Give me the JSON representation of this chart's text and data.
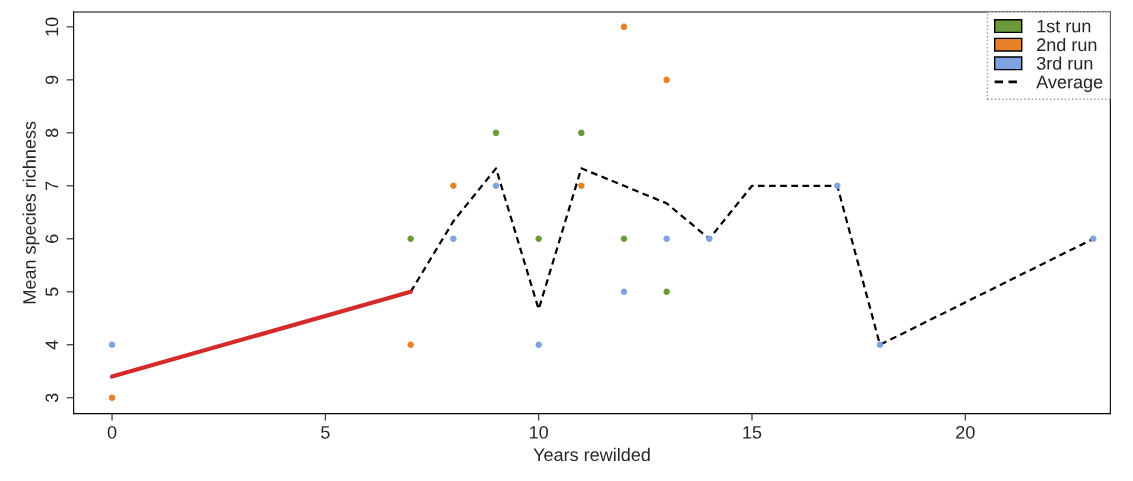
{
  "chart_data": {
    "type": "scatter",
    "xlabel": "Years rewilded",
    "ylabel": "Mean species richness",
    "xlim": [
      -0.9,
      23.4
    ],
    "ylim": [
      2.7,
      10.28
    ],
    "xticks": [
      0,
      5,
      10,
      15,
      20
    ],
    "yticks": [
      3,
      4,
      5,
      6,
      7,
      8,
      9,
      10
    ],
    "grid": false,
    "legend": "top right",
    "marker": "circle",
    "series": [
      {
        "name": "1st run",
        "color": "#6a9a3a",
        "x": [
          7,
          9,
          10,
          11,
          12,
          13
        ],
        "values": [
          6,
          8,
          6,
          8,
          6,
          5
        ]
      },
      {
        "name": "2nd run",
        "color": "#e8822a",
        "x": [
          0,
          7,
          8,
          11,
          12,
          13
        ],
        "values": [
          3,
          4,
          7,
          7,
          10,
          9
        ]
      },
      {
        "name": "3rd run",
        "color": "#7fa3e0",
        "x": [
          0,
          8,
          9,
          10,
          12,
          13,
          14,
          17,
          18,
          23
        ],
        "values": [
          4,
          6,
          7,
          4,
          5,
          6,
          6,
          7,
          4,
          6
        ]
      },
      {
        "name": "Average",
        "type": "line",
        "line_style": "dashed",
        "marker": "none",
        "color": "#000000",
        "x": [
          7,
          8,
          9,
          10,
          11,
          12,
          13,
          14,
          15,
          17,
          18,
          23
        ],
        "values": [
          5,
          6.33,
          7.33,
          4.67,
          7.33,
          7,
          6.67,
          6,
          7,
          7,
          4,
          6
        ]
      },
      {
        "type": "line",
        "line_style": "solid",
        "marker": "none",
        "color": "#d42a2a",
        "x": [
          0,
          7
        ],
        "values": [
          3.4,
          5
        ]
      }
    ]
  }
}
